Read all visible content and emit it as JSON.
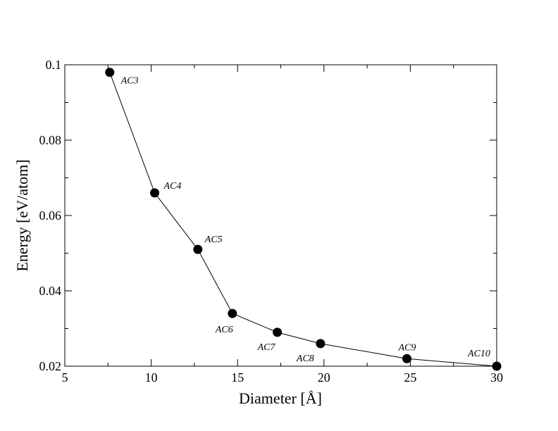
{
  "chart_data": {
    "type": "scatter",
    "title": "",
    "xlabel": "Diameter [Å]",
    "ylabel": "Energy [eV/atom]",
    "xlim": [
      5,
      30
    ],
    "ylim": [
      0.02,
      0.1
    ],
    "xticks": [
      5,
      10,
      15,
      20,
      25,
      30
    ],
    "xtick_labels": [
      "5",
      "10",
      "15",
      "20",
      "25",
      "30"
    ],
    "yticks": [
      0.02,
      0.04,
      0.06,
      0.08,
      0.1
    ],
    "ytick_labels": [
      "0.02",
      "0.04",
      "0.06",
      "0.08",
      "0.1"
    ],
    "grid": false,
    "series": [
      {
        "line": true,
        "marker": "circle",
        "color": "#000000",
        "points": [
          {
            "x": 7.6,
            "y": 0.098,
            "label": "AC3"
          },
          {
            "x": 10.2,
            "y": 0.066,
            "label": "AC4"
          },
          {
            "x": 12.7,
            "y": 0.051,
            "label": "AC5"
          },
          {
            "x": 14.7,
            "y": 0.034,
            "label": "AC6"
          },
          {
            "x": 17.3,
            "y": 0.029,
            "label": "AC7"
          },
          {
            "x": 19.8,
            "y": 0.026,
            "label": "AC8"
          },
          {
            "x": 24.8,
            "y": 0.022,
            "label": "AC9"
          },
          {
            "x": 30.0,
            "y": 0.02,
            "label": "AC10"
          }
        ]
      }
    ]
  }
}
